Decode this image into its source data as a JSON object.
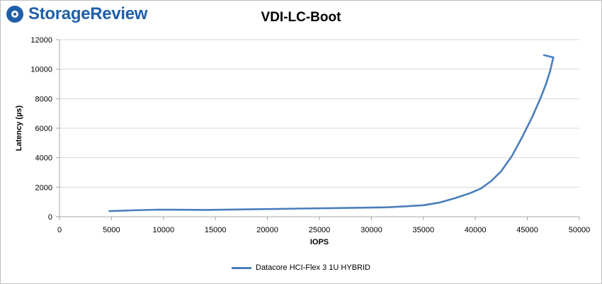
{
  "brand": {
    "name": "StorageReview",
    "logo_icon": "storagereview-logo-icon",
    "color": "#1f5fa8"
  },
  "chart_data": {
    "type": "line",
    "title": "VDI-LC-Boot",
    "xlabel": "IOPS",
    "ylabel": "Latency (µs)",
    "xlim": [
      0,
      50000
    ],
    "ylim": [
      0,
      12000
    ],
    "xticks": [
      0,
      5000,
      10000,
      15000,
      20000,
      25000,
      30000,
      35000,
      40000,
      45000,
      50000
    ],
    "yticks": [
      0,
      2000,
      4000,
      6000,
      8000,
      10000,
      12000
    ],
    "grid": "horizontal",
    "legend_position": "bottom",
    "series": [
      {
        "name": "Datacore HCI-Flex 3 1U HYBRID",
        "color": "#4a7ebb",
        "x": [
          4800,
          7000,
          9500,
          12000,
          14000,
          17000,
          20000,
          23000,
          26000,
          29000,
          31500,
          33000,
          35000,
          36500,
          38000,
          39500,
          40500,
          41500,
          42500,
          43500,
          44500,
          45500,
          46300,
          46800,
          47200,
          47400,
          47500,
          46600
        ],
        "y": [
          380,
          430,
          480,
          470,
          460,
          490,
          520,
          550,
          580,
          610,
          640,
          690,
          780,
          950,
          1250,
          1600,
          1900,
          2400,
          3100,
          4100,
          5400,
          6800,
          8100,
          9000,
          9900,
          10500,
          10800,
          10950
        ]
      }
    ]
  }
}
